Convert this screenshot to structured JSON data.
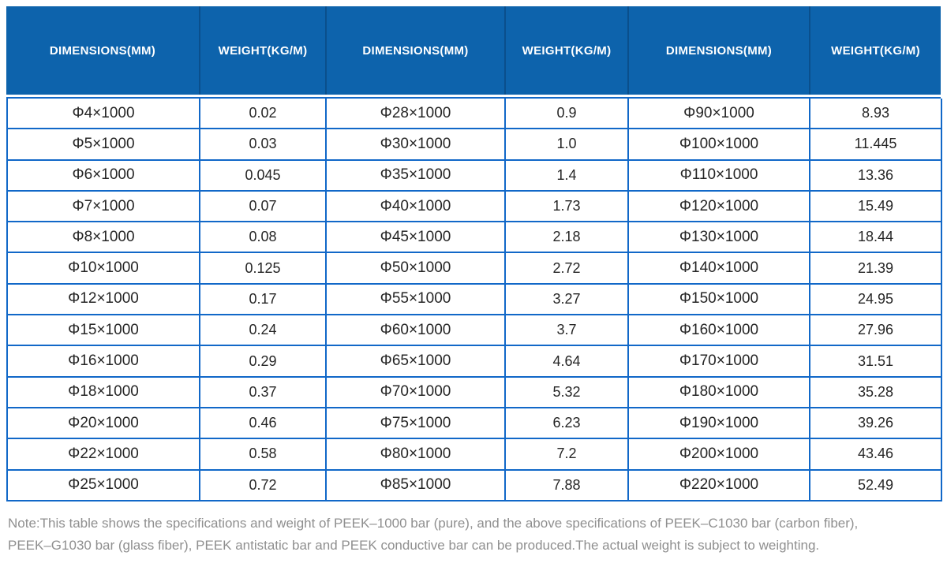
{
  "table": {
    "columns": [
      {
        "label": "DIMENSIONS(MM)",
        "type": "dimensions"
      },
      {
        "label": "WEIGHT(KG/M)",
        "type": "weight"
      },
      {
        "label": "DIMENSIONS(MM)",
        "type": "dimensions"
      },
      {
        "label": "WEIGHT(KG/M)",
        "type": "weight"
      },
      {
        "label": "DIMENSIONS(MM)",
        "type": "dimensions"
      },
      {
        "label": "WEIGHT(KG/M)",
        "type": "weight"
      }
    ],
    "rows": [
      [
        "Φ4×1000",
        "0.02",
        "Φ28×1000",
        "0.9",
        "Φ90×1000",
        "8.93"
      ],
      [
        "Φ5×1000",
        "0.03",
        "Φ30×1000",
        "1.0",
        "Φ100×1000",
        "11.445"
      ],
      [
        "Φ6×1000",
        "0.045",
        "Φ35×1000",
        "1.4",
        "Φ110×1000",
        "13.36"
      ],
      [
        "Φ7×1000",
        "0.07",
        "Φ40×1000",
        "1.73",
        "Φ120×1000",
        "15.49"
      ],
      [
        "Φ8×1000",
        "0.08",
        "Φ45×1000",
        "2.18",
        "Φ130×1000",
        "18.44"
      ],
      [
        "Φ10×1000",
        "0.125",
        "Φ50×1000",
        "2.72",
        "Φ140×1000",
        "21.39"
      ],
      [
        "Φ12×1000",
        "0.17",
        "Φ55×1000",
        "3.27",
        "Φ150×1000",
        "24.95"
      ],
      [
        "Φ15×1000",
        "0.24",
        "Φ60×1000",
        "3.7",
        "Φ160×1000",
        "27.96"
      ],
      [
        "Φ16×1000",
        "0.29",
        "Φ65×1000",
        "4.64",
        "Φ170×1000",
        "31.51"
      ],
      [
        "Φ18×1000",
        "0.37",
        "Φ70×1000",
        "5.32",
        "Φ180×1000",
        "35.28"
      ],
      [
        "Φ20×1000",
        "0.46",
        "Φ75×1000",
        "6.23",
        "Φ190×1000",
        "39.26"
      ],
      [
        "Φ22×1000",
        "0.58",
        "Φ80×1000",
        "7.2",
        "Φ200×1000",
        "43.46"
      ],
      [
        "Φ25×1000",
        "0.72",
        "Φ85×1000",
        "7.88",
        "Φ220×1000",
        "52.49"
      ]
    ]
  },
  "note": {
    "line1": "Note:This table shows the specifications and weight of PEEK–1000 bar (pure), and the above specifications of PEEK–C1030 bar (carbon fiber),",
    "line2": "PEEK–G1030 bar (glass fiber), PEEK antistatic bar and PEEK conductive bar can be produced.The actual weight is subject to weighting."
  },
  "colors": {
    "header_bg": "#0d63ac",
    "header_separator": "#0a4f8c",
    "body_border": "#1168c8",
    "body_text": "#252525",
    "note_text": "#8f8f8f"
  }
}
